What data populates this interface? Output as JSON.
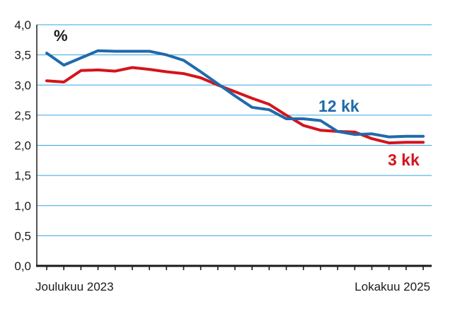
{
  "chart_data": {
    "type": "line",
    "unit_label": "%",
    "x_start_label": "Joulukuu 2023",
    "x_end_label": "Lokakuu 2025",
    "ylim": [
      0,
      4
    ],
    "yticks": [
      "0,0",
      "0,5",
      "1,0",
      "1,5",
      "2,0",
      "2,5",
      "3,0",
      "3,5",
      "4,0"
    ],
    "grid": true,
    "series": [
      {
        "name": "12 kk",
        "color": "#1f6aab",
        "values": [
          3.53,
          3.33,
          3.45,
          3.57,
          3.56,
          3.56,
          3.56,
          3.5,
          3.41,
          3.22,
          3.02,
          2.82,
          2.63,
          2.59,
          2.44,
          2.44,
          2.41,
          2.23,
          2.18,
          2.19,
          2.14,
          2.15,
          2.15
        ]
      },
      {
        "name": "3 kk",
        "color": "#d4141c",
        "values": [
          3.07,
          3.05,
          3.24,
          3.25,
          3.23,
          3.29,
          3.26,
          3.22,
          3.19,
          3.12,
          3.0,
          2.89,
          2.78,
          2.68,
          2.5,
          2.33,
          2.25,
          2.23,
          2.22,
          2.11,
          2.04,
          2.05,
          2.05
        ]
      }
    ]
  }
}
